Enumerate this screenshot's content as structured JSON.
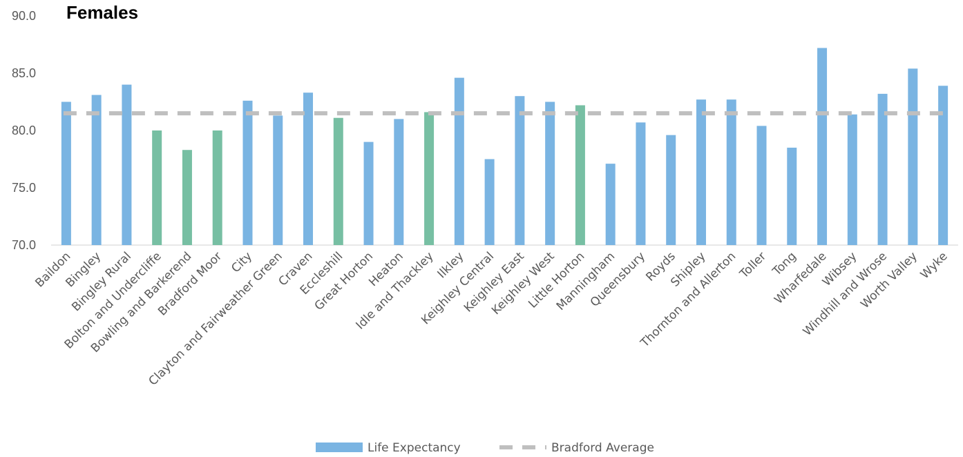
{
  "chart_data": {
    "type": "bar",
    "title": "Females",
    "ylim": [
      70,
      90
    ],
    "yticks": [
      "70.0",
      "75.0",
      "80.0",
      "85.0",
      "90.0"
    ],
    "grid": false,
    "legend_position": "bottom",
    "categories": [
      "Baildon",
      "Bingley",
      "Bingley Rural",
      "Bolton and Undercliffe",
      "Bowling and Barkerend",
      "Bradford Moor",
      "City",
      "Clayton and Fairweather Green",
      "Craven",
      "Eccleshill",
      "Great Horton",
      "Heaton",
      "Idle and Thackley",
      "Ilkley",
      "Keighley Central",
      "Keighley East",
      "Keighley West",
      "Little Horton",
      "Manningham",
      "Queensbury",
      "Royds",
      "Shipley",
      "Thornton and Allerton",
      "Toller",
      "Tong",
      "Wharfedale",
      "Wibsey",
      "Windhill and Wrose",
      "Worth Valley",
      "Wyke"
    ],
    "series": [
      {
        "name": "Life Expectancy",
        "type": "bar",
        "color": "#7ab4e2",
        "highlight_color": "#77bfa3",
        "values": [
          82.5,
          83.1,
          84.0,
          80.0,
          78.3,
          80.0,
          82.6,
          81.3,
          83.3,
          81.1,
          79.0,
          81.0,
          81.6,
          84.6,
          77.5,
          83.0,
          82.5,
          82.2,
          77.1,
          80.7,
          79.6,
          82.7,
          82.7,
          80.4,
          78.5,
          87.2,
          81.4,
          83.2,
          85.4,
          83.9
        ],
        "highlighted": [
          "Bolton and Undercliffe",
          "Bowling and Barkerend",
          "Bradford Moor",
          "Eccleshill",
          "Idle and Thackley",
          "Little Horton"
        ]
      },
      {
        "name": "Bradford Average",
        "type": "line",
        "style": "dashed",
        "color": "#bfbfbf",
        "value": 81.5
      }
    ]
  }
}
